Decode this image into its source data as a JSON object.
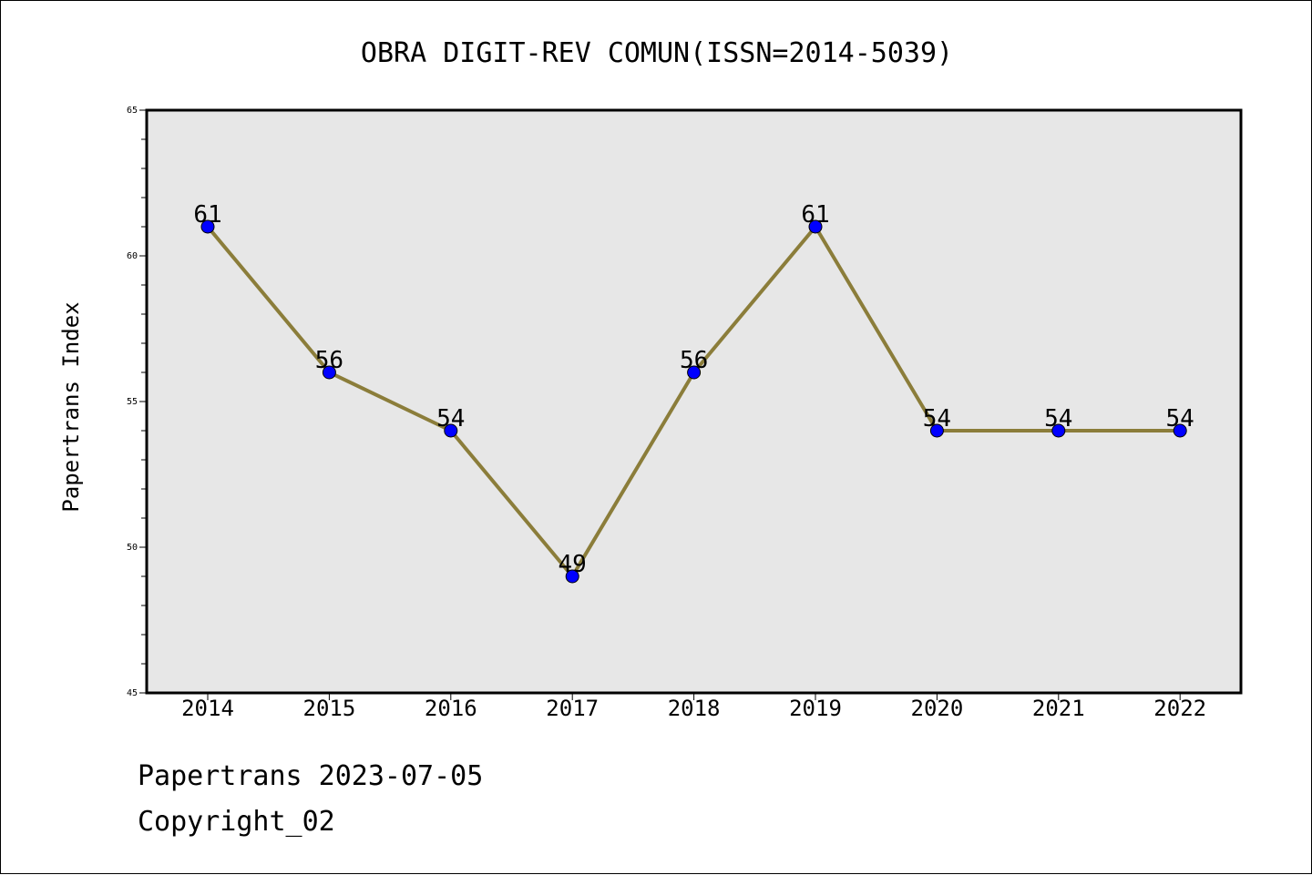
{
  "chart_data": {
    "type": "line",
    "title": "OBRA DIGIT-REV COMUN(ISSN=2014-5039)",
    "xlabel": "",
    "ylabel": "Papertrans Index",
    "categories": [
      "2014",
      "2015",
      "2016",
      "2017",
      "2018",
      "2019",
      "2020",
      "2021",
      "2022"
    ],
    "values": [
      61,
      56,
      54,
      49,
      56,
      61,
      54,
      54,
      54
    ],
    "data_labels": [
      "61",
      "56",
      "54",
      "49",
      "56",
      "61",
      "54",
      "54",
      "54"
    ],
    "ylim": [
      45,
      65
    ],
    "y_ticks": [
      45,
      50,
      55,
      60,
      65
    ],
    "y_tick_labels": [
      "45",
      "50",
      "55",
      "60",
      "65"
    ],
    "grid": false,
    "colors": {
      "line": "#8B7D3A",
      "marker": "#0000FF",
      "plot_background": "#E7E7E7"
    }
  },
  "footer": {
    "date_line": "Papertrans 2023-07-05",
    "copyright": "Copyright_02"
  }
}
